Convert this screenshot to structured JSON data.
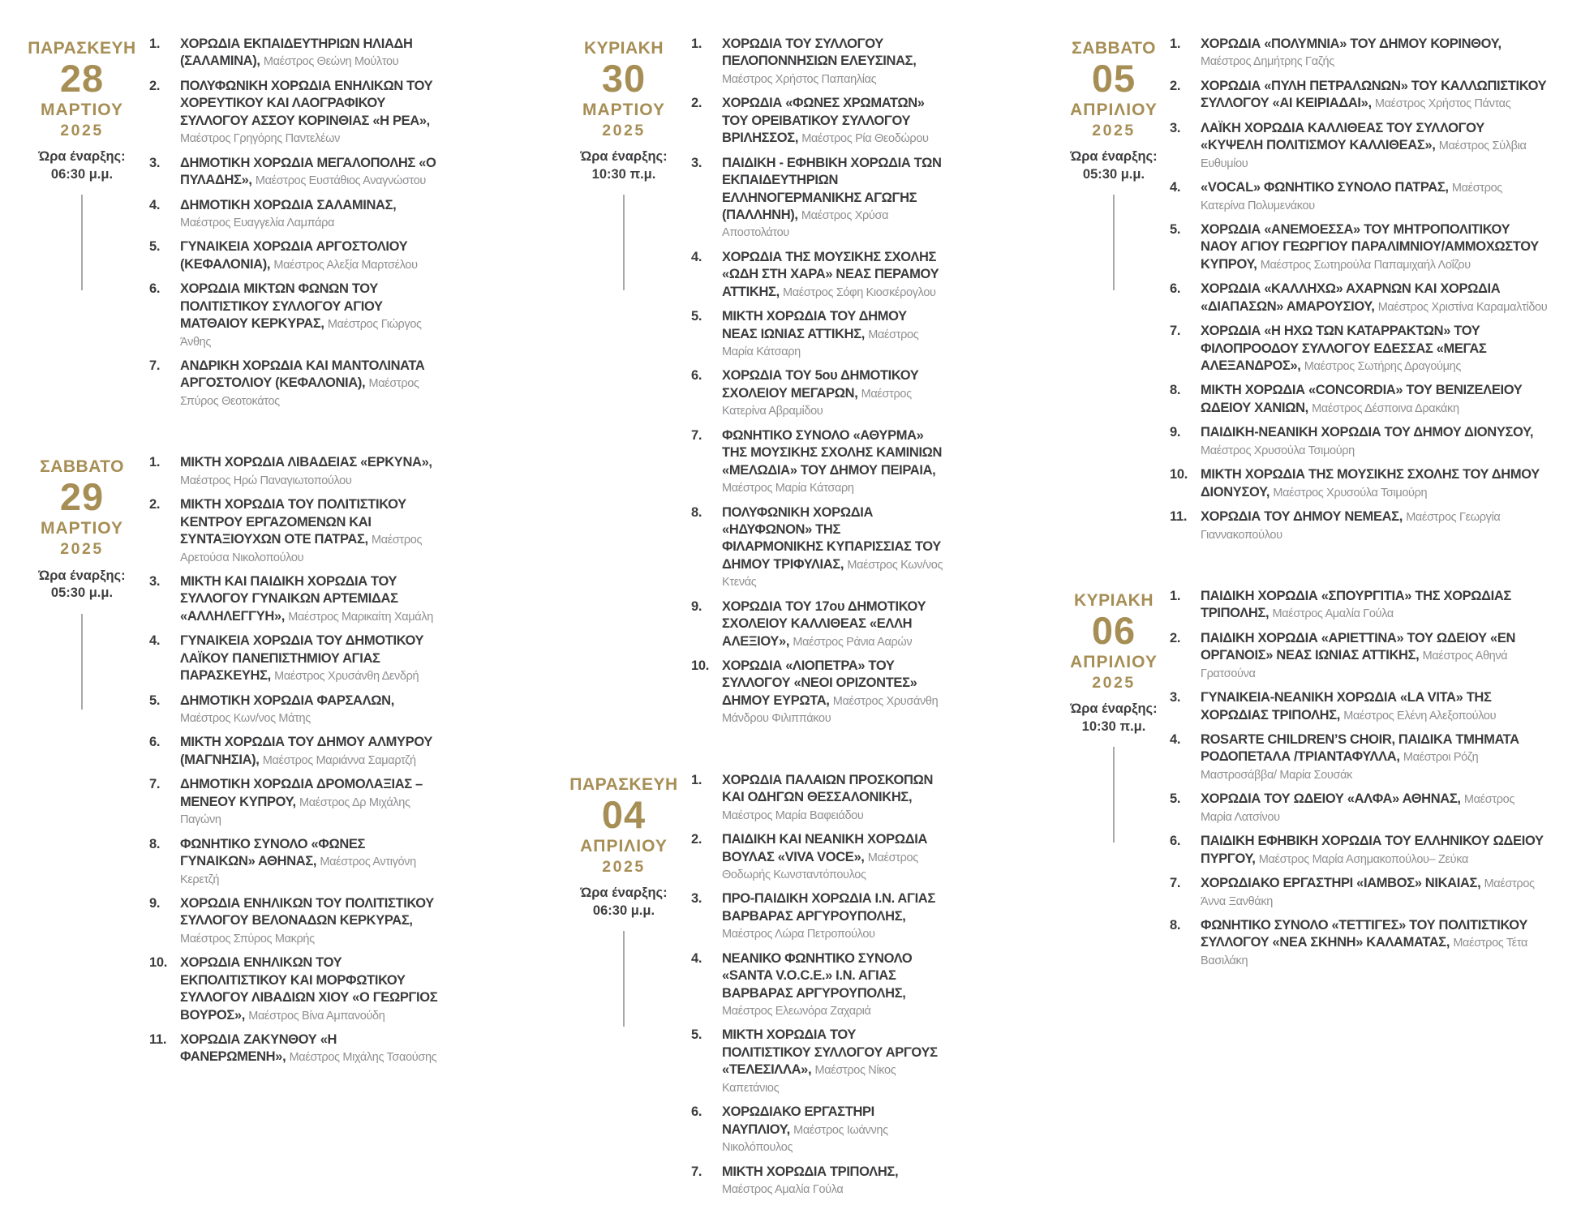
{
  "colors": {
    "gold": "#A68E55",
    "dark": "#3C3C3E",
    "gray": "#8F8F92",
    "line": "#A9A9A9",
    "background": "#FFFFFF"
  },
  "columns": [
    [
      {
        "day_name": "ΠΑΡΑΣΚΕΥΗ",
        "day_number": "28",
        "month": "ΜΑΡΤΙΟΥ",
        "year": "2025",
        "time_label": "Ώρα έναρξης:",
        "time_value": "06:30 μ.μ.",
        "items": [
          {
            "no": "1.",
            "name": "ΧΟΡΩΔΙΑ ΕΚΠΑΙΔΕΥΤΗΡΙΩΝ ΗΛΙΑΔΗ (ΣΑΛΑΜΙΝΑ),",
            "conductor": "Μαέστρος Θεώνη Μούλτου"
          },
          {
            "no": "2.",
            "name": "ΠΟΛΥΦΩΝΙΚΗ ΧΟΡΩΔΙΑ ΕΝΗΛΙΚΩΝ ΤΟΥ ΧΟΡΕΥΤΙΚΟΥ ΚΑΙ ΛΑΟΓΡΑΦΙΚΟΥ ΣΥΛΛΟΓΟΥ ΑΣΣΟΥ ΚΟΡΙΝΘΙΑΣ «Η ΡΕΑ»,",
            "conductor": "Μαέστρος Γρηγόρης Παντελέων"
          },
          {
            "no": "3.",
            "name": "ΔΗΜΟΤΙΚΗ ΧΟΡΩΔΙΑ ΜΕΓΑΛΟΠΟΛΗΣ «Ο ΠΥΛΑΔΗΣ»,",
            "conductor": "Μαέστρος Ευστάθιος Αναγνώστου"
          },
          {
            "no": "4.",
            "name": "ΔΗΜΟΤΙΚΗ ΧΟΡΩΔΙΑ ΣΑΛΑΜΙΝΑΣ,",
            "conductor": "Μαέστρος Ευαγγελία Λαμπάρα"
          },
          {
            "no": "5.",
            "name": "ΓΥΝΑΙΚΕΙΑ ΧΟΡΩΔΙΑ ΑΡΓΟΣΤΟΛΙΟΥ (ΚΕΦΑΛΟΝΙΑ),",
            "conductor": "Μαέστρος Αλεξία Μαρτσέλου"
          },
          {
            "no": "6.",
            "name": "ΧΟΡΩΔΙΑ ΜΙΚΤΩΝ ΦΩΝΩΝ ΤΟΥ ΠΟΛΙΤΙΣΤΙΚΟΥ ΣΥΛΛΟΓΟΥ ΑΓΙΟΥ ΜΑΤΘΑΙΟΥ ΚΕΡΚΥΡΑΣ,",
            "conductor": "Μαέστρος Γιώργος Άνθης"
          },
          {
            "no": "7.",
            "name": "ΑΝΔΡΙΚΗ ΧΟΡΩΔΙΑ ΚΑΙ ΜΑΝΤΟΛΙΝΑΤΑ ΑΡΓΟΣΤΟΛΙΟΥ (ΚΕΦΑΛΟΝΙΑ),",
            "conductor": "Μαέστρος Σπύρος Θεοτοκάτος"
          }
        ]
      },
      {
        "day_name": "ΣΑΒΒΑΤΟ",
        "day_number": "29",
        "month": "ΜΑΡΤΙΟΥ",
        "year": "2025",
        "time_label": "Ώρα έναρξης:",
        "time_value": "05:30 μ.μ.",
        "items": [
          {
            "no": "1.",
            "name": "ΜΙΚΤΗ ΧΟΡΩΔΙΑ ΛΙΒΑΔΕΙΑΣ «ΕΡΚΥΝΑ»,",
            "conductor": "Μαέστρος Ηρώ Παναγιωτοπούλου"
          },
          {
            "no": "2.",
            "name": "ΜΙΚΤΗ ΧΟΡΩΔΙΑ ΤΟΥ ΠΟΛΙΤΙΣΤΙΚΟΥ ΚΕΝΤΡΟΥ ΕΡΓΑΖΟΜΕΝΩΝ ΚΑΙ ΣΥΝΤΑΞΙΟΥΧΩΝ ΟΤΕ ΠΑΤΡΑΣ,",
            "conductor": "Μαέστρος Αρετούσα Νικολοπούλου"
          },
          {
            "no": "3.",
            "name": "ΜΙΚΤΗ ΚΑΙ ΠΑΙΔΙΚΗ ΧΟΡΩΔΙΑ ΤΟΥ ΣΥΛΛΟΓΟΥ ΓΥΝΑΙΚΩΝ ΑΡΤΕΜΙΔΑΣ «ΑΛΛΗΛΕΓΓΥΗ»,",
            "conductor": "Μαέστρος Μαρικαίτη Χαμάλη"
          },
          {
            "no": "4.",
            "name": "ΓΥΝΑΙΚΕΙΑ ΧΟΡΩΔΙΑ ΤΟΥ ΔΗΜΟΤΙΚΟΥ ΛΑΪΚΟΥ ΠΑΝΕΠΙΣΤΗΜΙΟΥ ΑΓΙΑΣ ΠΑΡΑΣΚΕΥΗΣ,",
            "conductor": "Μαέστρος Χρυσάνθη Δενδρή"
          },
          {
            "no": "5.",
            "name": "ΔΗΜΟΤΙΚΗ ΧΟΡΩΔΙΑ ΦΑΡΣΑΛΩΝ,",
            "conductor": "Μαέστρος Κων/νος Μάτης"
          },
          {
            "no": "6.",
            "name": "ΜΙΚΤΗ ΧΟΡΩΔΙΑ ΤΟΥ ΔΗΜΟΥ ΑΛΜΥΡΟΥ (ΜΑΓΝΗΣΙΑ),",
            "conductor": "Μαέστρος Μαριάννα Σαμαρτζή"
          },
          {
            "no": "7.",
            "name": "ΔΗΜΟΤΙΚΗ ΧΟΡΩΔΙΑ ΔΡΟΜΟΛΑΞΙΑΣ – ΜΕΝΕΟΥ ΚΥΠΡΟΥ,",
            "conductor": "Μαέστρος Δρ Μιχάλης Παγώνη"
          },
          {
            "no": "8.",
            "name": "ΦΩΝΗΤΙΚΟ ΣΥΝΟΛΟ «ΦΩΝΕΣ ΓΥΝΑΙΚΩΝ» ΑΘΗΝΑΣ,",
            "conductor": "Μαέστρος Αντιγόνη Κερετζή"
          },
          {
            "no": "9.",
            "name": "ΧΟΡΩΔΙΑ ΕΝΗΛΙΚΩΝ ΤΟΥ ΠΟΛΙΤΙΣΤΙΚΟΥ ΣΥΛΛΟΓΟΥ ΒΕΛΟΝΑΔΩΝ ΚΕΡΚΥΡΑΣ,",
            "conductor": "Μαέστρος Σπύρος Μακρής"
          },
          {
            "no": "10.",
            "name": "ΧΟΡΩΔΙΑ ΕΝΗΛΙΚΩΝ ΤΟΥ ΕΚΠΟΛΙΤΙΣΤΙΚΟΥ ΚΑΙ ΜΟΡΦΩΤΙΚΟΥ ΣΥΛΛΟΓΟΥ ΛΙΒΑΔΙΩΝ ΧΙΟΥ «Ο ΓΕΩΡΓΙΟΣ ΒΟΥΡΟΣ»,",
            "conductor": "Μαέστρος Βίνα Αμπανούδη"
          },
          {
            "no": "11.",
            "name": "ΧΟΡΩΔΙΑ ΖΑΚΥΝΘΟΥ «Η ΦΑΝΕΡΩΜΕΝΗ»,",
            "conductor": "Μαέστρος Μιχάλης Τσαούσης"
          }
        ]
      }
    ],
    [
      {
        "day_name": "ΚΥΡΙΑΚΗ",
        "day_number": "30",
        "month": "ΜΑΡΤΙΟΥ",
        "year": "2025",
        "time_label": "Ώρα έναρξης:",
        "time_value": "10:30 π.μ.",
        "items": [
          {
            "no": "1.",
            "name": "ΧΟΡΩΔΙΑ ΤΟΥ ΣΥΛΛΟΓΟΥ ΠΕΛΟΠΟΝΝΗΣΙΩΝ ΕΛΕΥΣΙΝΑΣ,",
            "conductor": "Μαέστρος Χρήστος Παπαηλίας"
          },
          {
            "no": "2.",
            "name": "ΧΟΡΩΔΙΑ «ΦΩΝΕΣ ΧΡΩΜΑΤΩΝ» ΤΟΥ ΟΡΕΙΒΑΤΙΚΟΥ ΣΥΛΛΟΓΟΥ ΒΡΙΛΗΣΣΟΣ,",
            "conductor": "Μαέστρος Ρία Θεοδώρου"
          },
          {
            "no": "3.",
            "name": "ΠΑΙΔΙΚΗ - ΕΦΗΒΙΚΗ ΧΟΡΩΔΙΑ ΤΩΝ ΕΚΠΑΙΔΕΥΤΗΡΙΩΝ ΕΛΛΗΝΟΓΕΡΜΑΝΙΚΗΣ ΑΓΩΓΗΣ (ΠΑΛΛΗΝΗ),",
            "conductor": "Μαέστρος Χρύσα Αποστολάτου"
          },
          {
            "no": "4.",
            "name": "ΧΟΡΩΔΙΑ ΤΗΣ ΜΟΥΣΙΚΗΣ ΣΧΟΛΗΣ «ΩΔΗ ΣΤΗ ΧΑΡΑ» ΝΕΑΣ ΠΕΡΑΜΟΥ ΑΤΤΙΚΗΣ,",
            "conductor": "Μαέστρος Σόφη Κιοσκέρογλου"
          },
          {
            "no": "5.",
            "name": "ΜΙΚΤΗ ΧΟΡΩΔΙΑ ΤΟΥ ΔΗΜΟΥ ΝΕΑΣ ΙΩΝΙΑΣ ΑΤΤΙΚΗΣ,",
            "conductor": "Μαέστρος Μαρία Κάτσαρη"
          },
          {
            "no": "6.",
            "name": "ΧΟΡΩΔΙΑ ΤΟΥ 5ου ΔΗΜΟΤΙΚΟΥ ΣΧΟΛΕΙΟΥ ΜΕΓΑΡΩΝ,",
            "conductor": "Μαέστρος Κατερίνα Αβραμίδου"
          },
          {
            "no": "7.",
            "name": "ΦΩΝΗΤΙΚΟ ΣΥΝΟΛΟ «ΑΘΥΡΜΑ» ΤΗΣ ΜΟΥΣΙΚΗΣ ΣΧΟΛΗΣ ΚΑΜΙΝΙΩΝ «ΜΕΛΩΔΙΑ» ΤΟΥ ΔΗΜΟΥ ΠΕΙΡΑΙΑ,",
            "conductor": "Μαέστρος Μαρία Κάτσαρη"
          },
          {
            "no": "8.",
            "name": "ΠΟΛΥΦΩΝΙΚΗ ΧΟΡΩΔΙΑ «ΗΔΥΦΩΝΟΝ» ΤΗΣ ΦΙΛΑΡΜΟΝΙΚΗΣ ΚΥΠΑΡΙΣΣΙΑΣ ΤΟΥ ΔΗΜΟΥ ΤΡΙΦΥΛΙΑΣ,",
            "conductor": "Μαέστρος Κων/νος Κτενάς"
          },
          {
            "no": "9.",
            "name": "ΧΟΡΩΔΙΑ ΤΟΥ 17ου ΔΗΜΟΤΙΚΟΥ ΣΧΟΛΕΙΟΥ ΚΑΛΛΙΘΕΑΣ «ΕΛΛΗ ΑΛΕΞΙΟΥ»,",
            "conductor": "Μαέστρος Ράνια Ααρών"
          },
          {
            "no": "10.",
            "name": "ΧΟΡΩΔΙΑ «ΛΙΟΠΕΤΡΑ» ΤΟΥ ΣΥΛΛΟΓΟΥ «ΝΕΟΙ ΟΡΙΖΟΝΤΕΣ» ΔΗΜΟΥ ΕΥΡΩΤΑ,",
            "conductor": "Μαέστρος Χρυσάνθη Μάνδρου Φιλιππάκου"
          }
        ]
      },
      {
        "day_name": "ΠΑΡΑΣΚΕΥΗ",
        "day_number": "04",
        "month": "ΑΠΡΙΛΙΟΥ",
        "year": "2025",
        "time_label": "Ώρα έναρξης:",
        "time_value": "06:30 μ.μ.",
        "items": [
          {
            "no": "1.",
            "name": "ΧΟΡΩΔΙΑ ΠΑΛΑΙΩΝ ΠΡΟΣΚΟΠΩΝ ΚΑΙ ΟΔΗΓΩΝ ΘΕΣΣΑΛΟΝΙΚΗΣ,",
            "conductor": "Μαέστρος Μαρία Βαφειάδου"
          },
          {
            "no": "2.",
            "name": "ΠΑΙΔΙΚΗ ΚΑΙ ΝΕΑΝΙΚΗ ΧΟΡΩΔΙΑ ΒΟΥΛΑΣ «VIVA VOCE»,",
            "conductor": "Μαέστρος Θοδωρής Κωνσταντόπουλος"
          },
          {
            "no": "3.",
            "name": "ΠΡΟ-ΠΑΙΔΙΚΗ ΧΟΡΩΔΙΑ Ι.Ν. ΑΓΙΑΣ ΒΑΡΒΑΡΑΣ ΑΡΓΥΡΟΥΠΟΛΗΣ,",
            "conductor": "Μαέστρος Λώρα Πετροπούλου"
          },
          {
            "no": "4.",
            "name": "ΝΕΑΝΙΚΟ ΦΩΝΗΤΙΚΟ ΣΥΝΟΛΟ «SANTA V.O.C.E.» Ι.Ν. ΑΓΙΑΣ ΒΑΡΒΑΡΑΣ ΑΡΓΥΡΟΥΠΟΛΗΣ,",
            "conductor": "Μαέστρος Ελεωνόρα Ζαχαριά"
          },
          {
            "no": "5.",
            "name": "ΜΙΚΤΗ ΧΟΡΩΔΙΑ ΤΟΥ ΠΟΛΙΤΙΣΤΙΚΟΥ ΣΥΛΛΟΓΟΥ ΑΡΓΟΥΣ «ΤΕΛΕΣΙΛΛΑ»,",
            "conductor": "Μαέστρος Νίκος Καπετάνιος"
          },
          {
            "no": "6.",
            "name": "ΧΟΡΩΔΙΑΚΟ ΕΡΓΑΣΤΗΡΙ ΝΑΥΠΛΙΟΥ,",
            "conductor": "Μαέστρος Ιωάννης Νικολόπουλος"
          },
          {
            "no": "7.",
            "name": "ΜΙΚΤΗ ΧΟΡΩΔΙΑ ΤΡΙΠΟΛΗΣ,",
            "conductor": "Μαέστρος Αμαλία Γούλα"
          }
        ]
      }
    ],
    [
      {
        "day_name": "ΣΑΒΒΑΤΟ",
        "day_number": "05",
        "month": "ΑΠΡΙΛΙΟΥ",
        "year": "2025",
        "time_label": "Ώρα έναρξης:",
        "time_value": "05:30 μ.μ.",
        "items": [
          {
            "no": "1.",
            "name": "ΧΟΡΩΔΙΑ «ΠΟΛΥΜΝΙΑ» ΤΟΥ ΔΗΜΟΥ ΚΟΡΙΝΘΟΥ,",
            "conductor": "Μαέστρος Δημήτρης Γαζής"
          },
          {
            "no": "2.",
            "name": "ΧΟΡΩΔΙΑ «ΠΥΛΗ ΠΕΤΡΑΛΩΝΩΝ» ΤΟΥ ΚΑΛΛΩΠΙΣΤΙΚΟΥ ΣΥΛΛΟΓΟΥ «ΑΙ ΚΕΙΡΙΑΔΑΙ»,",
            "conductor": "Μαέστρος Χρήστος Πάντας"
          },
          {
            "no": "3.",
            "name": "ΛΑΪΚΗ ΧΟΡΩΔΙΑ ΚΑΛΛΙΘΕΑΣ ΤΟΥ ΣΥΛΛΟΓΟΥ «ΚΥΨΕΛΗ ΠΟΛΙΤΙΣΜΟΥ ΚΑΛΛΙΘΕΑΣ»,",
            "conductor": "Μαέστρος Σύλβια Ευθυμίου"
          },
          {
            "no": "4.",
            "name": "«VOCAL» ΦΩΝΗΤΙΚΟ ΣΥΝΟΛΟ ΠΑΤΡΑΣ,",
            "conductor": "Μαέστρος Κατερίνα Πολυμενάκου"
          },
          {
            "no": "5.",
            "name": "ΧΟΡΩΔΙΑ «ΑΝΕΜΟΕΣΣΑ» ΤΟΥ ΜΗΤΡΟΠΟΛΙΤΙΚΟΥ ΝΑΟΥ ΑΓΙΟΥ ΓΕΩΡΓΙΟΥ ΠΑΡΑΛΙΜΝΙΟΥ/ΑΜΜΟΧΩΣΤΟΥ ΚΥΠΡΟΥ,",
            "conductor": "Μαέστρος Σωτηρούλα Παπαμιχαήλ Λοΐζου"
          },
          {
            "no": "6.",
            "name": "ΧΟΡΩΔΙΑ «ΚΑΛΛΗΧΩ» ΑΧΑΡΝΩΝ ΚΑΙ ΧΟΡΩΔΙΑ «ΔΙΑΠΑΣΩΝ» ΑΜΑΡΟΥΣΙΟΥ,",
            "conductor": "Μαέστρος Χριστίνα Καραμαλτίδου"
          },
          {
            "no": "7.",
            "name": "ΧΟΡΩΔΙΑ «Η ΗΧΩ ΤΩΝ ΚΑΤΑΡΡΑΚΤΩΝ» ΤΟΥ ΦΙΛΟΠΡΟΟΔΟΥ ΣΥΛΛΟΓΟΥ ΕΔΕΣΣΑΣ «ΜΕΓΑΣ ΑΛΕΞΑΝΔΡΟΣ»,",
            "conductor": "Μαέστρος Σωτήρης Δραγούμης"
          },
          {
            "no": "8.",
            "name": "ΜΙΚΤΗ ΧΟΡΩΔΙΑ «CONCORDIA» ΤΟΥ ΒΕΝΙΖΕΛΕΙΟΥ ΩΔΕΙΟΥ ΧΑΝΙΩΝ,",
            "conductor": "Μαέστρος Δέσποινα Δρακάκη"
          },
          {
            "no": "9.",
            "name": "ΠΑΙΔΙΚΗ-ΝΕΑΝΙΚΗ ΧΟΡΩΔΙΑ ΤΟΥ ΔΗΜΟΥ ΔΙΟΝΥΣΟΥ,",
            "conductor": "Μαέστρος Χρυσούλα Τσιμούρη"
          },
          {
            "no": "10.",
            "name": "ΜΙΚΤΗ ΧΟΡΩΔΙΑ ΤΗΣ ΜΟΥΣΙΚΗΣ ΣΧΟΛΗΣ ΤΟΥ ΔΗΜΟΥ ΔΙΟΝΥΣΟΥ,",
            "conductor": "Μαέστρος Χρυσούλα Τσιμούρη"
          },
          {
            "no": "11.",
            "name": "ΧΟΡΩΔΙΑ ΤΟΥ ΔΗΜΟΥ ΝΕΜΕΑΣ,",
            "conductor": "Μαέστρος Γεωργία Γιαννακοπούλου"
          }
        ]
      },
      {
        "day_name": "ΚΥΡΙΑΚΗ",
        "day_number": "06",
        "month": "ΑΠΡΙΛΙΟΥ",
        "year": "2025",
        "time_label": "Ώρα έναρξης:",
        "time_value": "10:30 π.μ.",
        "items": [
          {
            "no": "1.",
            "name": "ΠΑΙΔΙΚΗ ΧΟΡΩΔΙΑ «ΣΠΟΥΡΓΙΤΙΑ» ΤΗΣ ΧΟΡΩΔΙΑΣ ΤΡΙΠΟΛΗΣ,",
            "conductor": "Μαέστρος Αμαλία Γούλα"
          },
          {
            "no": "2.",
            "name": "ΠΑΙΔΙΚΗ ΧΟΡΩΔΙΑ «ΑΡΙΕΤΤΙΝΑ» ΤΟΥ ΩΔΕΙΟΥ «ΕΝ ΟΡΓΑΝΟΙΣ» ΝΕΑΣ ΙΩΝΙΑΣ ΑΤΤΙΚΗΣ,",
            "conductor": "Μαέστρος Αθηνά Γρατσούνα"
          },
          {
            "no": "3.",
            "name": "ΓΥΝΑΙΚΕΙΑ-ΝΕΑΝΙΚΗ ΧΟΡΩΔΙΑ «LA VITA» ΤΗΣ ΧΟΡΩΔΙΑΣ ΤΡΙΠΟΛΗΣ,",
            "conductor": "Μαέστρος Ελένη Αλεξοπούλου"
          },
          {
            "no": "4.",
            "name": "ROSARTE CHILDREN’S CHOIR, ΠΑΙΔΙΚΑ ΤΜΗΜΑΤΑ ΡΟΔΟΠΕΤΑΛΑ /ΤΡΙΑΝΤΑΦΥΛΛΑ,",
            "conductor": "Μαέστροι Ρόζη Μαστροσάββα/ Μαρία Σουσάκ"
          },
          {
            "no": "5.",
            "name": "ΧΟΡΩΔΙΑ ΤΟΥ ΩΔΕΙΟΥ «ΑΛΦΑ» ΑΘΗΝΑΣ,",
            "conductor": "Μαέστρος Μαρία Λατσίνου"
          },
          {
            "no": "6.",
            "name": "ΠΑΙΔΙΚΗ ΕΦΗΒΙΚΗ ΧΟΡΩΔΙΑ ΤΟΥ ΕΛΛΗΝΙΚΟΥ ΩΔΕΙΟΥ ΠΥΡΓΟΥ,",
            "conductor": "Μαέστρος Μαρία Ασημακοπούλου– Ζεύκα"
          },
          {
            "no": "7.",
            "name": "ΧΟΡΩΔΙΑΚΟ ΕΡΓΑΣΤΗΡΙ «ΙΑΜΒΟΣ» ΝΙΚΑΙΑΣ,",
            "conductor": "Μαέστρος Άννα Ξανθάκη"
          },
          {
            "no": "8.",
            "name": "ΦΩΝΗΤΙΚΟ ΣΥΝΟΛΟ «ΤΕΤΤΙΓΕΣ» ΤΟΥ ΠΟΛΙΤΙΣΤΙΚΟΥ ΣΥΛΛΟΓΟΥ «ΝΕΑ ΣΚΗΝΗ» ΚΑΛΑΜΑΤΑΣ,",
            "conductor": "Μαέστρος Τέτα Βασιλάκη"
          }
        ]
      }
    ]
  ]
}
